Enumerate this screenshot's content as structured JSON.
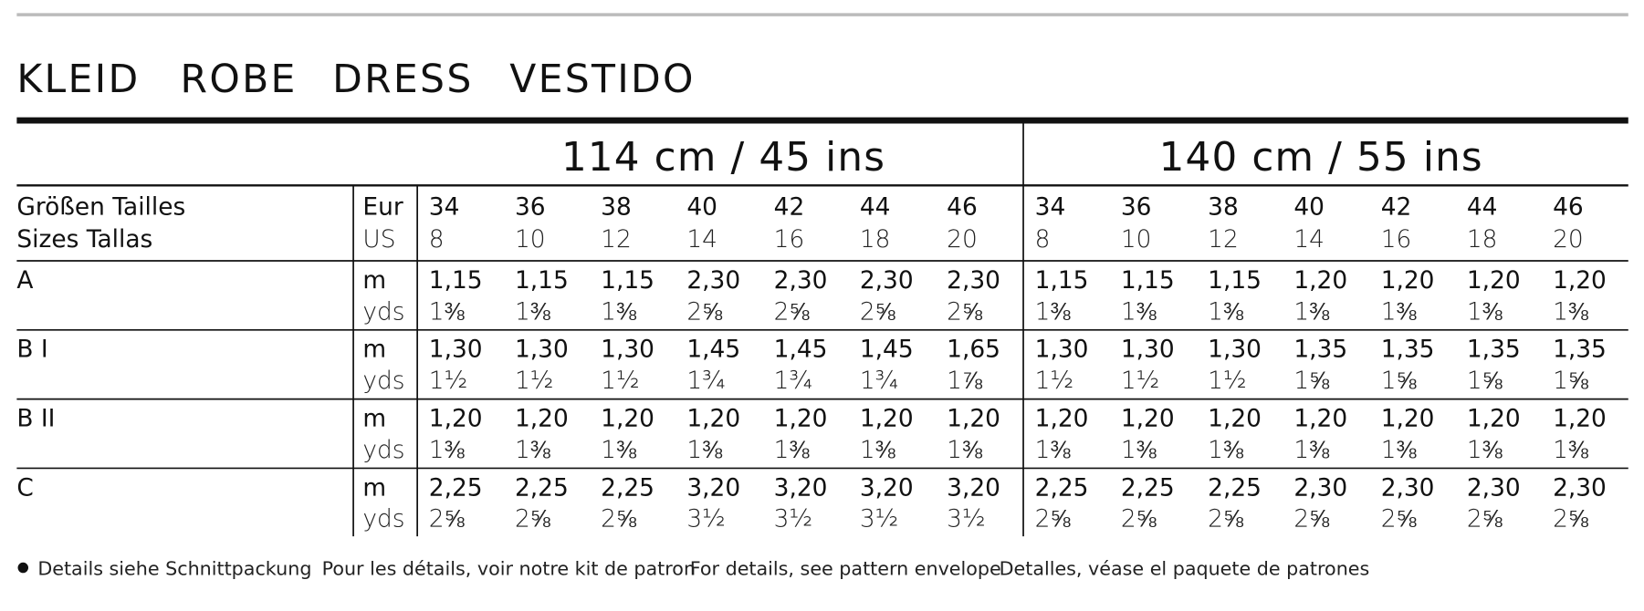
{
  "title": [
    "KLEID",
    "ROBE",
    "DRESS",
    "VESTIDO"
  ],
  "table": {
    "size_label": [
      "Größen  Tailles",
      "Sizes  Tallas"
    ],
    "size_units": [
      "Eur",
      "US"
    ],
    "groups": [
      {
        "label": "114 cm / 45 ins",
        "eur": [
          "34",
          "36",
          "38",
          "40",
          "42",
          "44",
          "46"
        ],
        "us": [
          "8",
          "10",
          "12",
          "14",
          "16",
          "18",
          "20"
        ]
      },
      {
        "label": "140 cm / 55 ins",
        "eur": [
          "34",
          "36",
          "38",
          "40",
          "42",
          "44",
          "46"
        ],
        "us": [
          "8",
          "10",
          "12",
          "14",
          "16",
          "18",
          "20"
        ]
      }
    ],
    "rows": [
      {
        "label": "A",
        "units": [
          "m",
          "yds"
        ],
        "m": [
          "1,15",
          "1,15",
          "1,15",
          "2,30",
          "2,30",
          "2,30",
          "2,30",
          "1,15",
          "1,15",
          "1,15",
          "1,20",
          "1,20",
          "1,20",
          "1,20"
        ],
        "yds": [
          "1⅜",
          "1⅜",
          "1⅜",
          "2⅝",
          "2⅝",
          "2⅝",
          "2⅝",
          "1⅜",
          "1⅜",
          "1⅜",
          "1⅜",
          "1⅜",
          "1⅜",
          "1⅜"
        ]
      },
      {
        "label": "B I",
        "units": [
          "m",
          "yds"
        ],
        "m": [
          "1,30",
          "1,30",
          "1,30",
          "1,45",
          "1,45",
          "1,45",
          "1,65",
          "1,30",
          "1,30",
          "1,30",
          "1,35",
          "1,35",
          "1,35",
          "1,35"
        ],
        "yds": [
          "1½",
          "1½",
          "1½",
          "1¾",
          "1¾",
          "1¾",
          "1⅞",
          "1½",
          "1½",
          "1½",
          "1⅝",
          "1⅝",
          "1⅝",
          "1⅝"
        ]
      },
      {
        "label": "B II",
        "units": [
          "m",
          "yds"
        ],
        "m": [
          "1,20",
          "1,20",
          "1,20",
          "1,20",
          "1,20",
          "1,20",
          "1,20",
          "1,20",
          "1,20",
          "1,20",
          "1,20",
          "1,20",
          "1,20",
          "1,20"
        ],
        "yds": [
          "1⅜",
          "1⅜",
          "1⅜",
          "1⅜",
          "1⅜",
          "1⅜",
          "1⅜",
          "1⅜",
          "1⅜",
          "1⅜",
          "1⅜",
          "1⅜",
          "1⅜",
          "1⅜"
        ]
      },
      {
        "label": "C",
        "units": [
          "m",
          "yds"
        ],
        "m": [
          "2,25",
          "2,25",
          "2,25",
          "3,20",
          "3,20",
          "3,20",
          "3,20",
          "2,25",
          "2,25",
          "2,25",
          "2,30",
          "2,30",
          "2,30",
          "2,30"
        ],
        "yds": [
          "2⅝",
          "2⅝",
          "2⅝",
          "3½",
          "3½",
          "3½",
          "3½",
          "2⅝",
          "2⅝",
          "2⅝",
          "2⅝",
          "2⅝",
          "2⅝",
          "2⅝"
        ]
      }
    ]
  },
  "footer": [
    "Details siehe Schnittpackung",
    "Pour les détails, voir notre kit de patron",
    "For details, see pattern envelope",
    "Detalles, véase el paquete de patrones"
  ]
}
